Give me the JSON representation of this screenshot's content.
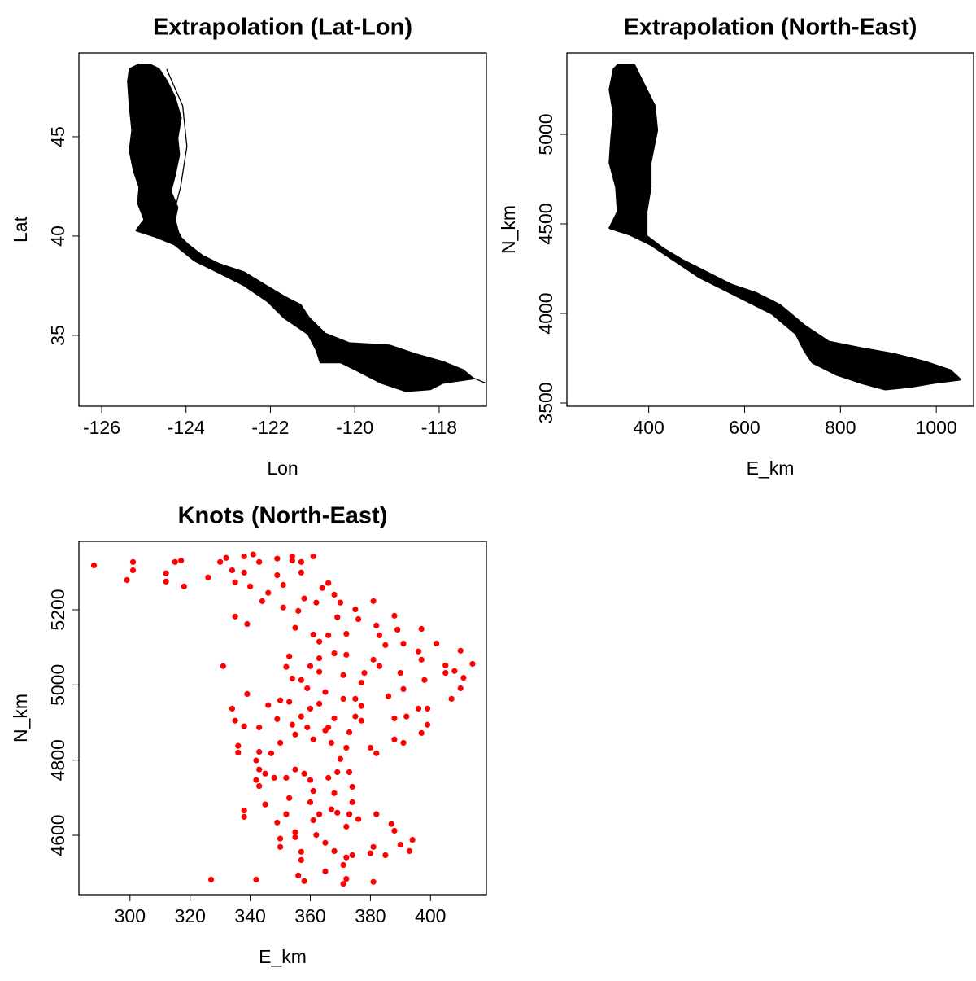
{
  "chart_data": [
    {
      "type": "polygon",
      "title": "Extrapolation (Lat-Lon)",
      "x_label": "Lon",
      "y_label": "Lat",
      "xlim": [
        -126.54,
        -116.88
      ],
      "ylim": [
        31.43,
        49.22
      ],
      "xticks": [
        -126,
        -124,
        -122,
        -120,
        -118
      ],
      "yticks": [
        35,
        40,
        45
      ],
      "series": [
        {
          "style": "fill",
          "color": "#000000",
          "x": [
            -125.33,
            -125.37,
            -125.33,
            -125.27,
            -125.33,
            -125.23,
            -125.1,
            -125.13,
            -124.98,
            -125.17,
            -124.75,
            -124.27,
            -123.79,
            -123.21,
            -122.63,
            -122.06,
            -121.67,
            -121.1,
            -120.9,
            -120.81,
            -120.33,
            -119.94,
            -119.37,
            -118.79,
            -118.21,
            -117.92,
            -117.21,
            -117.44,
            -117.92,
            -118.6,
            -119.17,
            -120.13,
            -120.71,
            -121.1,
            -121.29,
            -121.67,
            -122.15,
            -122.63,
            -123.21,
            -123.6,
            -123.88,
            -124.17,
            -124.27,
            -124.21,
            -124.37,
            -124.27,
            -124.17,
            -124.21,
            -124.13,
            -124.27,
            -124.46,
            -124.65,
            -124.85,
            -125.13
          ],
          "y": [
            48.4,
            47.79,
            46.56,
            45.33,
            44.3,
            43.28,
            42.46,
            41.64,
            40.82,
            40.29,
            40.0,
            39.59,
            38.77,
            38.16,
            37.54,
            36.72,
            35.9,
            35.08,
            34.26,
            33.65,
            33.65,
            33.24,
            32.62,
            32.21,
            32.3,
            32.62,
            32.83,
            33.24,
            33.65,
            34.06,
            34.47,
            34.59,
            35.08,
            35.9,
            36.52,
            36.93,
            37.54,
            38.16,
            38.57,
            38.98,
            39.39,
            40.0,
            40.82,
            41.43,
            42.25,
            43.07,
            44.1,
            44.92,
            45.94,
            46.97,
            47.79,
            48.4,
            48.61,
            48.61
          ]
        },
        {
          "style": "line",
          "color": "#000000",
          "x": [
            -124.46,
            -124.08,
            -123.98,
            -124.13,
            -124.33,
            -124.08,
            -123.21,
            -122.25,
            -121.48,
            -120.71,
            -120.52,
            -119.94,
            -118.79,
            -117.63,
            -116.9
          ],
          "y": [
            48.4,
            46.56,
            44.51,
            42.46,
            40.82,
            39.8,
            38.36,
            37.13,
            36.11,
            35.08,
            34.47,
            34.26,
            33.85,
            33.24,
            32.6
          ]
        }
      ]
    },
    {
      "type": "polygon",
      "title": "Extrapolation (North-East)",
      "x_label": "E_km",
      "y_label": "N_km",
      "xlim": [
        229.2,
        1077.8
      ],
      "ylim": [
        3481.8,
        5454.5
      ],
      "xticks": [
        400,
        600,
        800,
        1000
      ],
      "yticks": [
        3500,
        4000,
        4500,
        5000
      ],
      "series": [
        {
          "style": "fill",
          "color": "#000000",
          "x": [
            327.3,
            318.8,
            327.3,
            322.2,
            318.8,
            332.4,
            335.8,
            318.8,
            361.1,
            403.4,
            454.1,
            504.8,
            555.5,
            606.3,
            657.0,
            707.7,
            724.6,
            741.5,
            792.2,
            842.9,
            893.7,
            944.4,
            995.1,
            1049.2,
            1028.9,
            978.2,
            910.6,
            842.9,
            775.3,
            724.6,
            673.9,
            623.2,
            572.4,
            521.7,
            471.0,
            428.7,
            394.9,
            394.9,
            403.4,
            403.4,
            416.9,
            411.8,
            394.9,
            369.6,
            335.8
          ],
          "y": [
            5363.6,
            5250.0,
            5113.6,
            4977.3,
            4840.9,
            4704.5,
            4568.2,
            4477.3,
            4440.9,
            4386.4,
            4295.5,
            4204.5,
            4136.4,
            4068.2,
            4000.0,
            3886.4,
            3795.5,
            3727.3,
            3659.1,
            3613.6,
            3577.3,
            3590.9,
            3613.6,
            3631.8,
            3681.8,
            3727.3,
            3772.7,
            3804.5,
            3840.9,
            3931.8,
            4045.5,
            4113.6,
            4159.1,
            4227.3,
            4295.5,
            4363.6,
            4431.8,
            4568.2,
            4704.5,
            4840.9,
            5022.7,
            5159.1,
            5250.0,
            5386.4,
            5386.4
          ]
        }
      ]
    },
    {
      "type": "scatter",
      "title": "Knots (North-East)",
      "x_label": "E_km",
      "y_label": "N_km",
      "xlim": [
        283,
        418.6
      ],
      "ylim": [
        4441.9,
        5381.9
      ],
      "xticks": [
        300,
        320,
        340,
        360,
        380,
        400
      ],
      "yticks": [
        4600,
        4800,
        5000,
        5200
      ],
      "color": "#ff0000",
      "x": [
        288,
        299,
        301,
        301,
        312,
        312,
        315,
        317,
        318,
        326,
        330,
        332,
        334,
        335,
        338,
        341,
        338,
        340,
        343,
        349,
        349,
        351,
        354,
        357,
        357,
        361,
        354,
        335,
        339,
        344,
        346,
        351,
        355,
        356,
        358,
        362,
        364,
        366,
        368,
        369,
        370,
        372,
        375,
        376,
        381,
        382,
        383,
        385,
        388,
        389,
        391,
        396,
        397,
        402,
        408,
        410,
        414,
        411,
        410,
        407,
        405,
        405,
        398,
        397,
        391,
        390,
        383,
        381,
        378,
        377,
        375,
        371,
        372,
        368,
        366,
        363,
        361,
        363,
        363,
        360,
        359,
        357,
        353,
        352,
        354,
        331,
        339,
        334,
        335,
        338,
        343,
        346,
        350,
        353,
        349,
        354,
        357,
        360,
        363,
        365,
        368,
        366,
        371,
        375,
        377,
        377,
        386,
        388,
        392,
        396,
        399,
        399,
        397,
        391,
        388,
        382,
        380,
        373,
        372,
        370,
        367,
        365,
        361,
        359,
        355,
        350,
        347,
        343,
        336,
        336,
        342,
        343,
        342,
        345,
        348,
        343,
        345,
        352,
        355,
        358,
        360,
        361,
        366,
        368,
        369,
        373,
        374,
        374,
        373,
        372,
        369,
        367,
        363,
        361,
        360,
        353,
        352,
        349,
        350,
        355,
        355,
        357,
        357,
        362,
        365,
        368,
        372,
        374,
        371,
        372,
        371,
        365,
        358,
        356,
        350,
        342,
        327,
        338,
        338,
        381,
        380,
        387,
        388,
        390,
        394,
        393,
        385,
        382,
        376,
        381
      ],
      "y": [
        5318,
        5279,
        5327,
        5305,
        5297,
        5275,
        5327,
        5331,
        5262,
        5286,
        5327,
        5338,
        5305,
        5273,
        5342,
        5347,
        5299,
        5262,
        5327,
        5336,
        5292,
        5266,
        5342,
        5327,
        5299,
        5342,
        5331,
        5182,
        5162,
        5223,
        5245,
        5206,
        5152,
        5197,
        5230,
        5219,
        5258,
        5271,
        5240,
        5180,
        5219,
        5136,
        5201,
        5175,
        5223,
        5158,
        5132,
        5106,
        5184,
        5147,
        5110,
        5089,
        5149,
        5110,
        5037,
        5091,
        5056,
        5019,
        4991,
        4963,
        5032,
        5052,
        5013,
        5067,
        4989,
        5032,
        5050,
        5067,
        5032,
        5006,
        4963,
        5026,
        5080,
        5084,
        5132,
        5115,
        5134,
        5071,
        5035,
        5050,
        4991,
        5013,
        5076,
        5048,
        5017,
        5050,
        4976,
        4937,
        4905,
        4890,
        4887,
        4946,
        4959,
        4955,
        4909,
        4894,
        4916,
        4937,
        4950,
        4981,
        4911,
        4887,
        4963,
        4916,
        4944,
        4905,
        4970,
        4911,
        4916,
        4937,
        4937,
        4894,
        4872,
        4846,
        4855,
        4818,
        4833,
        4874,
        4833,
        4803,
        4846,
        4879,
        4855,
        4887,
        4868,
        4846,
        4818,
        4822,
        4838,
        4820,
        4799,
        4775,
        4747,
        4764,
        4753,
        4731,
        4682,
        4753,
        4775,
        4764,
        4747,
        4718,
        4753,
        4712,
        4768,
        4768,
        4729,
        4688,
        4656,
        4623,
        4660,
        4669,
        4656,
        4640,
        4688,
        4699,
        4656,
        4634,
        4591,
        4595,
        4608,
        4556,
        4534,
        4601,
        4580,
        4558,
        4541,
        4547,
        4521,
        4484,
        4471,
        4504,
        4478,
        4493,
        4569,
        4482,
        4482,
        4666,
        4649,
        4569,
        4552,
        4630,
        4612,
        4575,
        4588,
        4558,
        4547,
        4656,
        4643,
        4476
      ]
    }
  ]
}
